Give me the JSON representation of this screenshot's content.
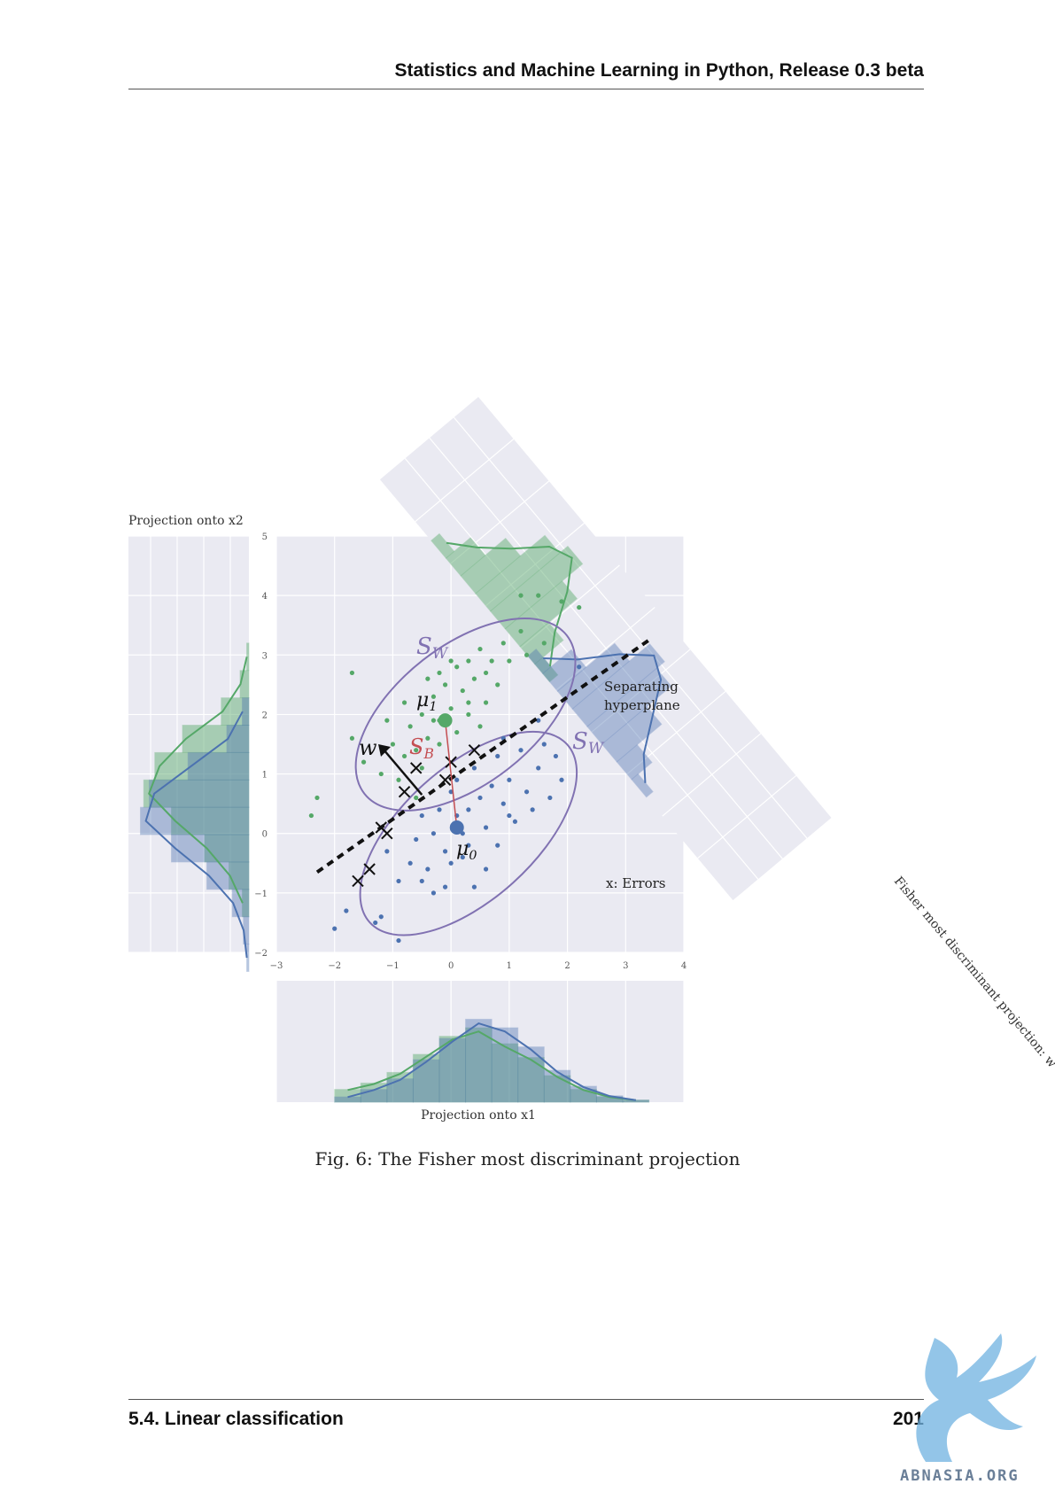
{
  "header": {
    "title": "Statistics and Machine Learning in Python, Release 0.3 beta"
  },
  "footer": {
    "section": "5.4.  Linear classification",
    "page": "201"
  },
  "caption": "Fig. 6: The Fisher most discriminant projection",
  "watermark": {
    "text": "ABNASIA.ORG"
  },
  "colors": {
    "class0": "#4c72b0",
    "class1": "#55a868",
    "ellipse": "#8172b2",
    "panel": "#eaeaf2",
    "sb": "#c44e52"
  },
  "chart_data": {
    "type": "scatter",
    "title": "",
    "xlim": [
      -3,
      4
    ],
    "ylim": [
      -2,
      5
    ],
    "x_ticks": [
      "−3",
      "−2",
      "−1",
      "0",
      "1",
      "2",
      "3",
      "4"
    ],
    "y_ticks": [
      "−2",
      "−1",
      "0",
      "1",
      "2",
      "3",
      "4",
      "5"
    ],
    "series": [
      {
        "color": "#55a868",
        "points": [
          [
            -2.3,
            0.6
          ],
          [
            -2.4,
            0.3
          ],
          [
            -1.7,
            2.7
          ],
          [
            -1.7,
            1.6
          ],
          [
            -1.5,
            1.2
          ],
          [
            -1.2,
            1.0
          ],
          [
            -1.0,
            1.5
          ],
          [
            -0.9,
            0.9
          ],
          [
            -0.8,
            1.3
          ],
          [
            -0.7,
            1.8
          ],
          [
            -0.6,
            1.4
          ],
          [
            -0.5,
            1.1
          ],
          [
            -0.5,
            2.0
          ],
          [
            -0.4,
            2.6
          ],
          [
            -0.4,
            1.6
          ],
          [
            -0.3,
            2.3
          ],
          [
            -0.2,
            2.7
          ],
          [
            -0.2,
            1.9
          ],
          [
            -0.1,
            2.5
          ],
          [
            0.0,
            2.1
          ],
          [
            0.1,
            2.8
          ],
          [
            0.1,
            1.7
          ],
          [
            0.2,
            2.4
          ],
          [
            0.3,
            2.9
          ],
          [
            0.3,
            2.0
          ],
          [
            0.4,
            2.6
          ],
          [
            0.5,
            1.8
          ],
          [
            0.5,
            3.1
          ],
          [
            0.6,
            2.7
          ],
          [
            0.7,
            2.9
          ],
          [
            0.8,
            2.5
          ],
          [
            0.9,
            3.2
          ],
          [
            1.0,
            2.9
          ],
          [
            1.2,
            3.4
          ],
          [
            1.3,
            3.0
          ],
          [
            1.2,
            4.0
          ],
          [
            1.5,
            4.0
          ],
          [
            1.9,
            3.9
          ],
          [
            2.2,
            3.8
          ],
          [
            1.6,
            3.2
          ],
          [
            -0.6,
            0.6
          ],
          [
            -0.2,
            1.5
          ],
          [
            0.0,
            2.9
          ],
          [
            0.3,
            2.2
          ],
          [
            -0.3,
            1.9
          ],
          [
            -1.1,
            1.9
          ],
          [
            -0.8,
            2.2
          ],
          [
            0.6,
            2.2
          ]
        ]
      },
      {
        "color": "#4c72b0",
        "points": [
          [
            -2.0,
            -1.6
          ],
          [
            -1.8,
            -1.3
          ],
          [
            -1.3,
            -1.5
          ],
          [
            -1.2,
            -1.4
          ],
          [
            -0.9,
            -1.8
          ],
          [
            -1.1,
            -0.3
          ],
          [
            -0.9,
            -0.8
          ],
          [
            -0.7,
            -0.5
          ],
          [
            -0.6,
            -0.1
          ],
          [
            -0.5,
            0.3
          ],
          [
            -0.4,
            -0.6
          ],
          [
            -0.3,
            0.0
          ],
          [
            -0.3,
            -1.0
          ],
          [
            -0.2,
            0.4
          ],
          [
            -0.1,
            -0.3
          ],
          [
            0.0,
            0.7
          ],
          [
            0.0,
            -0.5
          ],
          [
            0.1,
            0.9
          ],
          [
            0.2,
            0.0
          ],
          [
            0.2,
            -0.4
          ],
          [
            0.3,
            0.4
          ],
          [
            0.4,
            1.1
          ],
          [
            0.4,
            -0.9
          ],
          [
            0.5,
            0.6
          ],
          [
            0.6,
            0.1
          ],
          [
            0.7,
            0.8
          ],
          [
            0.8,
            -0.2
          ],
          [
            0.8,
            1.3
          ],
          [
            0.9,
            0.5
          ],
          [
            1.0,
            0.9
          ],
          [
            1.1,
            0.2
          ],
          [
            1.2,
            1.4
          ],
          [
            1.3,
            0.7
          ],
          [
            1.5,
            1.1
          ],
          [
            1.6,
            1.5
          ],
          [
            1.7,
            0.6
          ],
          [
            1.5,
            1.9
          ],
          [
            1.8,
            1.3
          ],
          [
            1.9,
            0.9
          ],
          [
            2.2,
            2.8
          ],
          [
            -0.1,
            -0.9
          ],
          [
            0.3,
            -0.2
          ],
          [
            0.6,
            -0.6
          ],
          [
            1.0,
            0.3
          ],
          [
            -0.5,
            -0.8
          ],
          [
            0.9,
            1.6
          ],
          [
            1.4,
            0.4
          ],
          [
            0.1,
            0.3
          ]
        ]
      }
    ],
    "means": [
      {
        "label": "μ1",
        "x": -0.1,
        "y": 1.9
      },
      {
        "label": "μ0",
        "x": 0.1,
        "y": 0.1
      }
    ],
    "errors": [
      [
        -1.6,
        -0.8
      ],
      [
        -1.4,
        -0.6
      ],
      [
        -1.2,
        0.1
      ],
      [
        -1.1,
        0.0
      ],
      [
        -0.8,
        0.7
      ],
      [
        -0.6,
        1.1
      ],
      [
        -0.1,
        0.9
      ],
      [
        0.0,
        1.2
      ],
      [
        0.4,
        1.4
      ]
    ],
    "annotations": {
      "sw_upper": "S",
      "sw_upper_sub": "W",
      "sw_lower": "S",
      "sw_lower_sub": "W",
      "sb": "S",
      "sb_sub": "B",
      "w": "w",
      "mu1": "μ",
      "mu1_sub": "1",
      "mu0": "μ",
      "mu0_sub": "0",
      "separating_1": "Separating",
      "separating_2": "hyperplane",
      "errors": "x: Errors"
    },
    "margin_x_label": "Projection onto x1",
    "margin_y_label": "Projection onto x2",
    "fisher_label": "Fisher most discriminant projection: w",
    "hist_x": {
      "class1": [
        0.12,
        0.18,
        0.28,
        0.45,
        0.62,
        0.7,
        0.55,
        0.42,
        0.25,
        0.12,
        0.05,
        0.02
      ],
      "class0": [
        0.05,
        0.12,
        0.22,
        0.4,
        0.6,
        0.78,
        0.7,
        0.52,
        0.3,
        0.15,
        0.06,
        0.02
      ]
    },
    "hist_y": {
      "class1": [
        0.02,
        0.08,
        0.25,
        0.6,
        0.85,
        0.95,
        0.7,
        0.4,
        0.18,
        0.06
      ],
      "class0": [
        0.06,
        0.2,
        0.55,
        0.9,
        0.98,
        0.7,
        0.38,
        0.15,
        0.05,
        0.02
      ]
    }
  }
}
